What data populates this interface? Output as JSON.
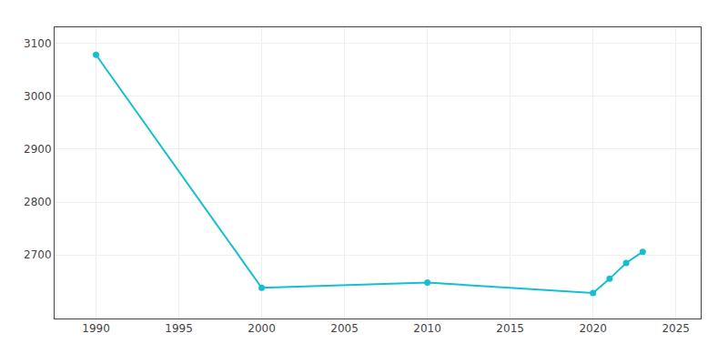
{
  "chart_data": {
    "type": "line",
    "x": [
      1990,
      2000,
      2010,
      2020,
      2021,
      2022,
      2023
    ],
    "values": [
      3078,
      2638,
      2648,
      2628,
      2655,
      2685,
      2706
    ],
    "color": "#17BECF",
    "marker": "circle",
    "xlim": [
      1987.5,
      2026.5
    ],
    "ylim": [
      2580,
      3130
    ],
    "xticks": [
      1990,
      1995,
      2000,
      2005,
      2010,
      2015,
      2020,
      2025
    ],
    "yticks": [
      2700,
      2800,
      2900,
      3000,
      3100
    ],
    "grid": true
  }
}
